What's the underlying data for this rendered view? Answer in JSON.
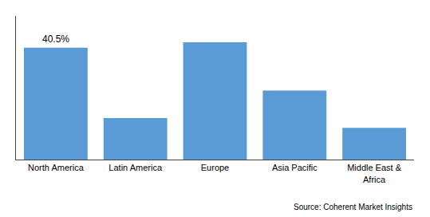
{
  "chart_data": {
    "type": "bar",
    "categories": [
      "North America",
      "Latin America",
      "Europe",
      "Asia Pacific",
      "Middle East &\nAfrica"
    ],
    "values": [
      40.5,
      15.0,
      42.5,
      25.0,
      11.5
    ],
    "color": "#5b9bd5",
    "ylim": [
      0,
      52
    ],
    "yticks": [],
    "tick_labels": "x",
    "grid": false,
    "annotations": [
      {
        "text": "40.5%",
        "category": "North America",
        "value": 40.5
      }
    ],
    "source": "Source: Coherent Market Insights"
  }
}
